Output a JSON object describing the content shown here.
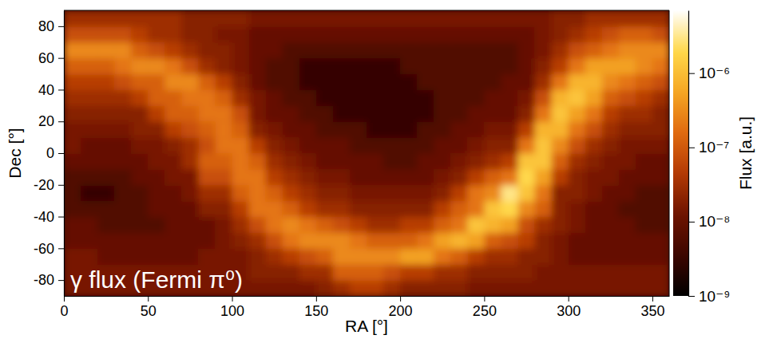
{
  "chart_data": {
    "type": "heatmap",
    "title": "γ flux (Fermi π⁰)",
    "x_label": "RA [°]",
    "y_label": "Dec [°]",
    "xlim": [
      0,
      360
    ],
    "ylim": [
      -90,
      90
    ],
    "xticks": [
      0,
      50,
      100,
      150,
      200,
      250,
      300,
      350
    ],
    "yticks": [
      -80,
      -60,
      -40,
      -20,
      0,
      20,
      40,
      60,
      80
    ],
    "ra_bins": [
      0,
      10,
      20,
      30,
      40,
      50,
      60,
      70,
      80,
      90,
      100,
      110,
      120,
      130,
      140,
      150,
      160,
      170,
      180,
      190,
      200,
      210,
      220,
      230,
      240,
      250,
      260,
      270,
      280,
      290,
      300,
      310,
      320,
      330,
      340,
      350,
      360
    ],
    "dec_bins": [
      -90,
      -80,
      -70,
      -60,
      -50,
      -40,
      -30,
      -20,
      -10,
      0,
      10,
      20,
      30,
      40,
      50,
      60,
      70,
      80,
      90
    ],
    "cells": [
      [
        1.5e-08,
        1.5e-08,
        1.5e-08,
        1e-08,
        1e-08,
        6e-09,
        6e-09,
        6e-09,
        1e-08,
        1.5e-08,
        1.5e-08,
        2e-08,
        3e-08,
        5e-08,
        1.2e-07,
        3e-07,
        8e-08,
        3e-08
      ],
      [
        1.5e-08,
        1.5e-08,
        1.5e-08,
        1e-08,
        1e-08,
        6e-09,
        3e-09,
        6e-09,
        1e-08,
        1e-08,
        1.5e-08,
        2e-08,
        3e-08,
        5e-08,
        1.2e-07,
        3e-07,
        8e-08,
        3e-08
      ],
      [
        1.5e-08,
        1.5e-08,
        1e-08,
        1e-08,
        6e-09,
        6e-09,
        3e-09,
        6e-09,
        1e-08,
        1e-08,
        1.5e-08,
        2e-08,
        3e-08,
        5e-08,
        1.2e-07,
        3e-07,
        8e-08,
        3e-08
      ],
      [
        1.5e-08,
        1.5e-08,
        1e-08,
        1e-08,
        6e-09,
        6e-09,
        6e-09,
        6e-09,
        1e-08,
        1e-08,
        1.5e-08,
        2e-08,
        3e-08,
        8e-08,
        2e-07,
        3e-07,
        8e-08,
        3e-08
      ],
      [
        1.5e-08,
        1.5e-08,
        1e-08,
        1e-08,
        6e-09,
        6e-09,
        6e-09,
        1e-08,
        1e-08,
        1.5e-08,
        2e-08,
        2e-08,
        5e-08,
        1.2e-07,
        3e-07,
        1.2e-07,
        5e-08,
        3e-08
      ],
      [
        1.5e-08,
        1.5e-08,
        1e-08,
        1e-08,
        6e-09,
        1e-08,
        1e-08,
        1e-08,
        1.5e-08,
        1.5e-08,
        2e-08,
        5e-08,
        1.2e-07,
        1.2e-07,
        3e-07,
        8e-08,
        3e-08,
        3e-08
      ],
      [
        1.5e-08,
        1.5e-08,
        1e-08,
        1e-08,
        1e-08,
        1e-08,
        1e-08,
        1.5e-08,
        1.5e-08,
        2e-08,
        5e-08,
        1.2e-07,
        1.2e-07,
        3e-07,
        2e-07,
        5e-08,
        3e-08,
        3e-08
      ],
      [
        1.5e-08,
        1.5e-08,
        1e-08,
        1e-08,
        1e-08,
        1e-08,
        1.5e-08,
        1.5e-08,
        3e-08,
        3e-08,
        8e-08,
        1.2e-07,
        2e-07,
        3e-07,
        8e-08,
        3e-08,
        2e-08,
        2e-08
      ],
      [
        1.5e-08,
        1.5e-08,
        1.5e-08,
        1e-08,
        1e-08,
        2e-08,
        3e-08,
        8e-08,
        1.2e-07,
        8e-08,
        1.2e-07,
        2e-07,
        2e-07,
        1.2e-07,
        3e-08,
        2e-08,
        2e-08,
        2e-08
      ],
      [
        1.5e-08,
        1.5e-08,
        1.5e-08,
        1.5e-08,
        1.5e-08,
        2e-08,
        3e-08,
        8e-08,
        1.2e-07,
        2e-07,
        2e-07,
        2e-07,
        1.2e-07,
        5e-08,
        2e-08,
        2e-08,
        1.5e-08,
        2e-08
      ],
      [
        1.5e-08,
        1.5e-08,
        1.5e-08,
        2e-08,
        3e-08,
        5e-08,
        1.2e-07,
        2e-07,
        2e-07,
        2e-07,
        1.2e-07,
        8e-08,
        3e-08,
        2e-08,
        1.5e-08,
        1.5e-08,
        1.5e-08,
        2e-08
      ],
      [
        1.5e-08,
        2e-08,
        2e-08,
        3e-08,
        8e-08,
        2e-07,
        2e-07,
        2e-07,
        1.2e-07,
        5e-08,
        2e-08,
        1.5e-08,
        1.5e-08,
        1e-08,
        1e-08,
        1e-08,
        1e-08,
        1.5e-08
      ],
      [
        1.5e-08,
        2e-08,
        3e-08,
        8e-08,
        2e-07,
        2e-07,
        1.2e-07,
        5e-08,
        3e-08,
        2e-08,
        1.5e-08,
        1e-08,
        1e-08,
        6e-09,
        6e-09,
        1e-08,
        1e-08,
        1.5e-08
      ],
      [
        1.5e-08,
        2e-08,
        5e-08,
        2e-07,
        3e-07,
        1.2e-07,
        5e-08,
        3e-08,
        2e-08,
        1.5e-08,
        1e-08,
        1e-08,
        6e-09,
        6e-09,
        6e-09,
        6e-09,
        1e-08,
        1.5e-08
      ],
      [
        1.5e-08,
        3e-08,
        8e-08,
        3e-07,
        2e-07,
        5e-08,
        3e-08,
        2e-08,
        1.5e-08,
        1e-08,
        1e-08,
        6e-09,
        6e-09,
        3e-09,
        3e-09,
        6e-09,
        1e-08,
        1.5e-08
      ],
      [
        2e-08,
        3e-08,
        1.2e-07,
        3e-07,
        1.2e-07,
        3e-08,
        2e-08,
        1.5e-08,
        1e-08,
        1e-08,
        6e-09,
        6e-09,
        3e-09,
        3e-09,
        3e-09,
        6e-09,
        1e-08,
        1.5e-08
      ],
      [
        3e-08,
        1.2e-07,
        3e-07,
        3e-07,
        8e-08,
        3e-08,
        2e-08,
        1.5e-08,
        1e-08,
        1e-08,
        6e-09,
        3e-09,
        3e-09,
        3e-09,
        3e-09,
        6e-09,
        1e-08,
        1.5e-08
      ],
      [
        5e-08,
        1.2e-07,
        3e-07,
        2e-07,
        5e-08,
        2e-08,
        1.5e-08,
        1e-08,
        1e-08,
        6e-09,
        6e-09,
        3e-09,
        3e-09,
        3e-09,
        3e-09,
        6e-09,
        1e-08,
        1.5e-08
      ],
      [
        5e-08,
        1.2e-07,
        3e-07,
        1.2e-07,
        3e-08,
        2e-08,
        1.5e-08,
        1e-08,
        1e-08,
        6e-09,
        3e-09,
        3e-09,
        3e-09,
        3e-09,
        3e-09,
        6e-09,
        1e-08,
        1.5e-08
      ],
      [
        3e-08,
        8e-08,
        3e-07,
        1.2e-07,
        3e-08,
        2e-08,
        1.5e-08,
        1e-08,
        6e-09,
        6e-09,
        3e-09,
        3e-09,
        3e-09,
        3e-09,
        3e-09,
        6e-09,
        1e-08,
        1.5e-08
      ],
      [
        2e-08,
        5e-08,
        5e-07,
        1.2e-07,
        5e-08,
        2e-08,
        1.5e-08,
        1e-08,
        6e-09,
        6e-09,
        3e-09,
        3e-09,
        3e-09,
        3e-09,
        6e-09,
        6e-09,
        1e-08,
        1.5e-08
      ],
      [
        2e-08,
        5e-08,
        5e-07,
        2e-07,
        5e-08,
        2e-08,
        1.5e-08,
        1e-08,
        1e-08,
        6e-09,
        6e-09,
        3e-09,
        3e-09,
        6e-09,
        6e-09,
        6e-09,
        1e-08,
        1.5e-08
      ],
      [
        2e-08,
        3e-08,
        2e-07,
        5e-07,
        1.2e-07,
        5e-08,
        2e-08,
        1.5e-08,
        1e-08,
        1e-08,
        6e-09,
        6e-09,
        6e-09,
        6e-09,
        6e-09,
        6e-09,
        1e-08,
        1.5e-08
      ],
      [
        2e-08,
        3e-08,
        1.2e-07,
        8e-07,
        2e-07,
        1.2e-07,
        5e-08,
        2e-08,
        1.5e-08,
        1e-08,
        1e-08,
        6e-09,
        6e-09,
        6e-09,
        6e-09,
        6e-09,
        1e-08,
        1.5e-08
      ],
      [
        1.5e-08,
        2e-08,
        5e-08,
        5e-07,
        1.2e-06,
        2e-07,
        2e-07,
        5e-08,
        2e-08,
        1.5e-08,
        1e-08,
        1e-08,
        6e-09,
        6e-09,
        6e-09,
        6e-09,
        1e-08,
        1.5e-08
      ],
      [
        1.5e-08,
        2e-08,
        3e-08,
        1.2e-07,
        8e-07,
        1.2e-06,
        3e-07,
        1.2e-07,
        3e-08,
        2e-08,
        1.5e-08,
        1e-08,
        1e-08,
        6e-09,
        6e-09,
        6e-09,
        1e-08,
        1.5e-08
      ],
      [
        1.5e-08,
        2e-08,
        3e-08,
        8e-08,
        5e-07,
        2e-06,
        3e-06,
        2e-07,
        5e-08,
        2e-08,
        1.5e-08,
        1e-08,
        1e-08,
        1e-08,
        6e-09,
        6e-09,
        1e-08,
        1.5e-08
      ],
      [
        1.5e-08,
        2e-08,
        2e-08,
        5e-08,
        8e-08,
        3e-07,
        1.2e-06,
        2e-06,
        1.2e-06,
        2e-07,
        5e-08,
        2e-08,
        1.5e-08,
        1e-08,
        1e-08,
        1e-08,
        1e-08,
        1.5e-08
      ],
      [
        1.5e-08,
        1.5e-08,
        2e-08,
        2e-08,
        3e-08,
        1.2e-07,
        2e-07,
        5e-07,
        1.2e-06,
        1.2e-06,
        8e-07,
        2e-07,
        8e-08,
        3e-08,
        2e-08,
        1.5e-08,
        1.5e-08,
        1.5e-08
      ],
      [
        1.5e-08,
        1.5e-08,
        1.5e-08,
        1.5e-08,
        2e-08,
        2e-08,
        2e-08,
        5e-08,
        1.2e-07,
        3e-07,
        8e-07,
        1.2e-06,
        8e-07,
        2e-07,
        5e-08,
        3e-08,
        2e-08,
        2e-08
      ],
      [
        1.5e-08,
        1.5e-08,
        1e-08,
        1e-08,
        1.5e-08,
        1.5e-08,
        2e-08,
        2e-08,
        3e-08,
        8e-08,
        2e-07,
        5e-07,
        1.2e-06,
        8e-07,
        2e-07,
        8e-08,
        3e-08,
        2e-08
      ],
      [
        1.5e-08,
        1.5e-08,
        1e-08,
        1e-08,
        1e-08,
        1e-08,
        1.5e-08,
        1.5e-08,
        2e-08,
        3e-08,
        8e-08,
        2e-07,
        5e-07,
        8e-07,
        5e-07,
        1.2e-07,
        5e-08,
        3e-08
      ],
      [
        1.5e-08,
        1.5e-08,
        1e-08,
        1e-08,
        1e-08,
        1e-08,
        1e-08,
        1.5e-08,
        1.5e-08,
        2e-08,
        3e-08,
        5e-08,
        1.2e-07,
        3e-07,
        5e-07,
        2e-07,
        8e-08,
        3e-08
      ],
      [
        1.5e-08,
        1.5e-08,
        1e-08,
        1e-08,
        1e-08,
        6e-09,
        1e-08,
        1e-08,
        1.5e-08,
        1.5e-08,
        2e-08,
        3e-08,
        8e-08,
        2e-07,
        5e-07,
        3e-07,
        1.2e-07,
        3e-08
      ],
      [
        1.5e-08,
        1.5e-08,
        1e-08,
        1e-08,
        6e-09,
        6e-09,
        6e-09,
        1e-08,
        1e-08,
        1.5e-08,
        2e-08,
        3e-08,
        5e-08,
        1.2e-07,
        3e-07,
        3e-07,
        1.2e-07,
        3e-08
      ],
      [
        1.5e-08,
        1.5e-08,
        1e-08,
        1e-08,
        6e-09,
        6e-09,
        6e-09,
        1e-08,
        1e-08,
        1.5e-08,
        2e-08,
        2e-08,
        3e-08,
        8e-08,
        2e-07,
        3e-07,
        8e-08,
        3e-08
      ]
    ],
    "colorbar": {
      "label": "Flux [a.u.]",
      "log": true,
      "range": [
        1e-09,
        7e-06
      ],
      "ticks": [
        {
          "value": 1e-09,
          "label": "10⁻⁹"
        },
        {
          "value": 1e-08,
          "label": "10⁻⁸"
        },
        {
          "value": 1e-07,
          "label": "10⁻⁷"
        },
        {
          "value": 1e-06,
          "label": "10⁻⁶"
        }
      ]
    }
  }
}
